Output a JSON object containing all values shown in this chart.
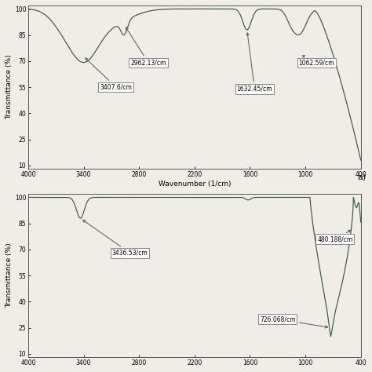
{
  "chart_color": "#3a5a3c",
  "bg_color": "#f0ede8",
  "ylabel": "Transmittance (%)",
  "xlabel": "Wavenumber (1/cm)",
  "label_a": "a)",
  "chart1": {
    "yticks": [
      10,
      25,
      40,
      55,
      70,
      85,
      100
    ],
    "xticks": [
      4000,
      3400,
      2800,
      2200,
      1600,
      1000,
      400
    ],
    "xlim_l": 4000,
    "xlim_r": 400,
    "ylim_b": 8,
    "ylim_t": 102,
    "annotations": [
      {
        "label": "3407.6/cm",
        "xa": 3407,
        "ya": 73,
        "xt": 3050,
        "yt": 55
      },
      {
        "label": "2962.13/cm",
        "xa": 2962,
        "ya": 91,
        "xt": 2700,
        "yt": 69
      },
      {
        "label": "1632.45/cm",
        "xa": 1632,
        "ya": 88,
        "xt": 1550,
        "yt": 54
      },
      {
        "label": "1062.59/cm",
        "xa": 1062,
        "ya": 74,
        "xt": 880,
        "yt": 69
      }
    ]
  },
  "chart2": {
    "yticks": [
      10,
      25,
      40,
      55,
      70,
      85,
      100
    ],
    "xticks": [
      4000,
      3400,
      2800,
      2200,
      1600,
      1000,
      400
    ],
    "xlim_l": 4000,
    "xlim_r": 400,
    "ylim_b": 8,
    "ylim_t": 102,
    "annotations": [
      {
        "label": "3436.53/cm",
        "xa": 3436,
        "ya": 88,
        "xt": 2900,
        "yt": 68
      },
      {
        "label": "726.068/cm",
        "xa": 726,
        "ya": 25,
        "xt": 1300,
        "yt": 30
      },
      {
        "label": "480.188/cm",
        "xa": 480,
        "ya": 82,
        "xt": 680,
        "yt": 76
      }
    ]
  }
}
